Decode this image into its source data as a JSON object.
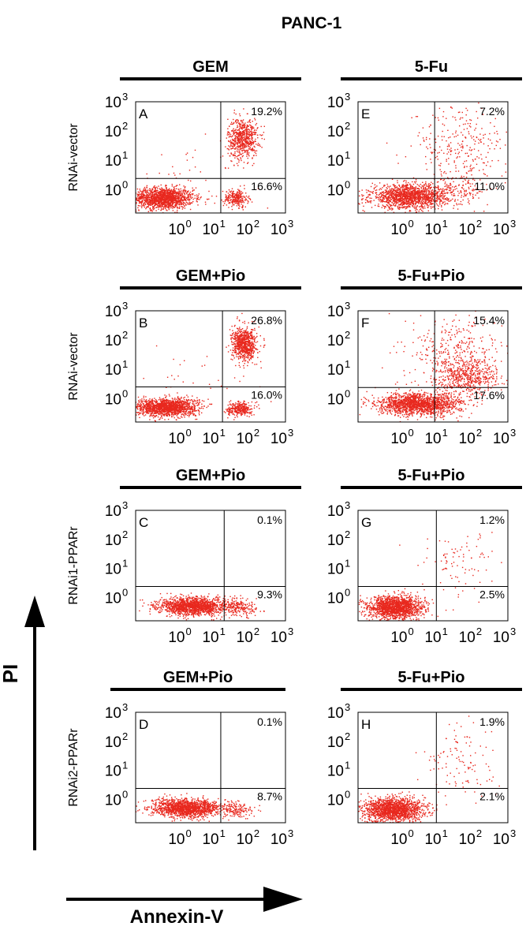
{
  "figure_title": "PANC-1",
  "y_axis_label": "PI",
  "x_axis_label": "Annexin-V",
  "colors": {
    "dots": "#e8281e",
    "axis": "#000000"
  },
  "chart_data": [
    {
      "type": "scatter",
      "letter": "A",
      "header": "GEM",
      "row_label": "RNAi-vector",
      "ur_pct": "19.2%",
      "lr_pct": "16.6%",
      "x_ticks": [
        "10",
        "10",
        "10",
        "10"
      ],
      "x_exps": [
        "0",
        "1",
        "2",
        "3"
      ],
      "y_ticks": [
        "10",
        "10",
        "10",
        "10"
      ],
      "y_exps": [
        "0",
        "1",
        "2",
        "3"
      ],
      "xlim": [
        -1.4,
        3
      ],
      "ylim": [
        -0.8,
        3
      ],
      "quadrant_gate": {
        "x": 1.1,
        "y": 0.38
      },
      "clusters": [
        {
          "x": -0.6,
          "y": -0.3,
          "sx": 0.45,
          "sy": 0.18,
          "n": 1500
        },
        {
          "x": 1.75,
          "y": 1.75,
          "sx": 0.22,
          "sy": 0.35,
          "n": 650
        },
        {
          "x": 1.55,
          "y": -0.3,
          "sx": 0.18,
          "sy": 0.15,
          "n": 260
        },
        {
          "x": 0.5,
          "y": 0.6,
          "sx": 1.1,
          "sy": 0.7,
          "n": 40
        }
      ]
    },
    {
      "type": "scatter",
      "letter": "E",
      "header": "5-Fu",
      "row_label": "",
      "ur_pct": "7.2%",
      "lr_pct": "11.0%",
      "x_ticks": [
        "10",
        "10",
        "10",
        "10"
      ],
      "x_exps": [
        "0",
        "1",
        "2",
        "3"
      ],
      "y_ticks": [
        "10",
        "10",
        "10",
        "10"
      ],
      "y_exps": [
        "0",
        "1",
        "2",
        "3"
      ],
      "xlim": [
        -1.4,
        3
      ],
      "ylim": [
        -0.8,
        3
      ],
      "quadrant_gate": {
        "x": 0.85,
        "y": 0.38
      },
      "clusters": [
        {
          "x": 0.1,
          "y": -0.25,
          "sx": 0.55,
          "sy": 0.2,
          "n": 1500
        },
        {
          "x": 1.6,
          "y": 1.4,
          "sx": 0.7,
          "sy": 0.75,
          "n": 300
        },
        {
          "x": 1.5,
          "y": 0.0,
          "sx": 0.5,
          "sy": 0.25,
          "n": 150
        }
      ]
    },
    {
      "type": "scatter",
      "letter": "B",
      "header": "GEM+Pio",
      "row_label": "RNAi-vector",
      "ur_pct": "26.8%",
      "lr_pct": "16.0%",
      "x_ticks": [
        "10",
        "10",
        "10",
        "10"
      ],
      "x_exps": [
        "0",
        "1",
        "2",
        "3"
      ],
      "y_ticks": [
        "10",
        "10",
        "10",
        "10"
      ],
      "y_exps": [
        "0",
        "1",
        "2",
        "3"
      ],
      "xlim": [
        -1.4,
        3
      ],
      "ylim": [
        -0.8,
        3
      ],
      "quadrant_gate": {
        "x": 1.15,
        "y": 0.4
      },
      "clusters": [
        {
          "x": -0.5,
          "y": -0.3,
          "sx": 0.45,
          "sy": 0.15,
          "n": 1500
        },
        {
          "x": 1.8,
          "y": 1.85,
          "sx": 0.18,
          "sy": 0.28,
          "n": 750
        },
        {
          "x": 1.65,
          "y": -0.35,
          "sx": 0.18,
          "sy": 0.12,
          "n": 300
        },
        {
          "x": 0.5,
          "y": 0.6,
          "sx": 1.1,
          "sy": 0.7,
          "n": 40
        }
      ]
    },
    {
      "type": "scatter",
      "letter": "F",
      "header": "5-Fu+Pio",
      "row_label": "",
      "ur_pct": "15.4%",
      "lr_pct": "17.6%",
      "x_ticks": [
        "10",
        "10",
        "10",
        "10"
      ],
      "x_exps": [
        "0",
        "1",
        "2",
        "3"
      ],
      "y_ticks": [
        "10",
        "10",
        "10",
        "10"
      ],
      "y_exps": [
        "0",
        "1",
        "2",
        "3"
      ],
      "xlim": [
        -1.4,
        3
      ],
      "ylim": [
        -0.8,
        3
      ],
      "quadrant_gate": {
        "x": 0.85,
        "y": 0.38
      },
      "clusters": [
        {
          "x": 0.4,
          "y": -0.2,
          "sx": 0.6,
          "sy": 0.18,
          "n": 1600
        },
        {
          "x": 1.8,
          "y": 0.75,
          "sx": 0.45,
          "sy": 0.3,
          "n": 500
        },
        {
          "x": 1.5,
          "y": 1.5,
          "sx": 0.7,
          "sy": 0.7,
          "n": 400
        }
      ]
    },
    {
      "type": "scatter",
      "letter": "C",
      "header": "GEM+Pio",
      "row_label": "RNAi1-PPARr",
      "ur_pct": "0.1%",
      "lr_pct": "9.3%",
      "x_ticks": [
        "10",
        "10",
        "10",
        "10"
      ],
      "x_exps": [
        "0",
        "1",
        "2",
        "3"
      ],
      "y_ticks": [
        "10",
        "10",
        "10",
        "10"
      ],
      "y_exps": [
        "0",
        "1",
        "2",
        "3"
      ],
      "xlim": [
        -1.4,
        3
      ],
      "ylim": [
        -0.8,
        3
      ],
      "quadrant_gate": {
        "x": 1.2,
        "y": 0.38
      },
      "clusters": [
        {
          "x": 0.3,
          "y": -0.3,
          "sx": 0.5,
          "sy": 0.15,
          "n": 1500
        },
        {
          "x": 1.6,
          "y": -0.35,
          "sx": 0.3,
          "sy": 0.15,
          "n": 200
        }
      ]
    },
    {
      "type": "scatter",
      "letter": "G",
      "header": "5-Fu+Pio",
      "row_label": "",
      "ur_pct": "1.2%",
      "lr_pct": "2.5%",
      "x_ticks": [
        "10",
        "10",
        "10",
        "10"
      ],
      "x_exps": [
        "0",
        "1",
        "2",
        "3"
      ],
      "y_ticks": [
        "10",
        "10",
        "10",
        "10"
      ],
      "y_exps": [
        "0",
        "1",
        "2",
        "3"
      ],
      "xlim": [
        -1.4,
        3
      ],
      "ylim": [
        -0.8,
        3
      ],
      "quadrant_gate": {
        "x": 0.9,
        "y": 0.38
      },
      "clusters": [
        {
          "x": -0.3,
          "y": -0.35,
          "sx": 0.4,
          "sy": 0.2,
          "n": 1600
        },
        {
          "x": 1.6,
          "y": 1.2,
          "sx": 0.5,
          "sy": 0.6,
          "n": 90
        }
      ]
    },
    {
      "type": "scatter",
      "letter": "D",
      "header": "GEM+Pio",
      "row_label": "RNAi2-PPARr",
      "ur_pct": "0.1%",
      "lr_pct": "8.7%",
      "x_ticks": [
        "10",
        "10",
        "10",
        "10"
      ],
      "x_exps": [
        "0",
        "1",
        "2",
        "3"
      ],
      "y_ticks": [
        "10",
        "10",
        "10",
        "10"
      ],
      "y_exps": [
        "0",
        "1",
        "2",
        "3"
      ],
      "xlim": [
        -1.4,
        3
      ],
      "ylim": [
        -0.8,
        3
      ],
      "quadrant_gate": {
        "x": 1.1,
        "y": 0.38
      },
      "clusters": [
        {
          "x": 0.1,
          "y": -0.3,
          "sx": 0.5,
          "sy": 0.15,
          "n": 1500
        },
        {
          "x": 1.55,
          "y": -0.35,
          "sx": 0.25,
          "sy": 0.15,
          "n": 150
        }
      ]
    },
    {
      "type": "scatter",
      "letter": "H",
      "header": "5-Fu+Pio",
      "row_label": "",
      "ur_pct": "1.9%",
      "lr_pct": "2.1%",
      "x_ticks": [
        "10",
        "10",
        "10",
        "10"
      ],
      "x_exps": [
        "0",
        "1",
        "2",
        "3"
      ],
      "y_ticks": [
        "10",
        "10",
        "10",
        "10"
      ],
      "y_exps": [
        "0",
        "1",
        "2",
        "3"
      ],
      "xlim": [
        -1.4,
        3
      ],
      "ylim": [
        -0.8,
        3
      ],
      "quadrant_gate": {
        "x": 0.9,
        "y": 0.38
      },
      "clusters": [
        {
          "x": -0.35,
          "y": -0.35,
          "sx": 0.45,
          "sy": 0.2,
          "n": 1600
        },
        {
          "x": 1.7,
          "y": 1.4,
          "sx": 0.5,
          "sy": 0.6,
          "n": 110
        }
      ]
    }
  ]
}
